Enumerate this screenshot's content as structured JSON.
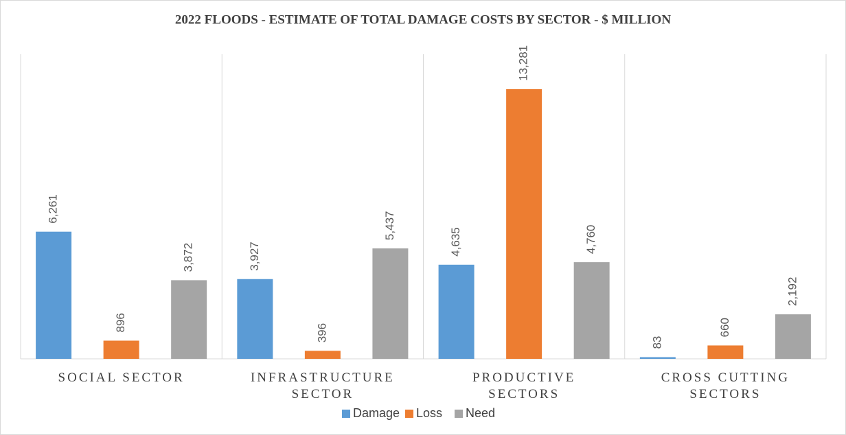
{
  "chart_data": {
    "type": "bar",
    "title": "2022 FLOODS - ESTIMATE OF TOTAL DAMAGE COSTS BY SECTOR - $ MILLION",
    "categories": [
      "SOCIAL SECTOR",
      "INFRASTRUCTURE SECTOR",
      "PRODUCTIVE SECTORS",
      "CROSS CUTTING SECTORS"
    ],
    "series": [
      {
        "name": "Damage",
        "color": "#5b9bd5",
        "values": [
          6261,
          3927,
          4635,
          83
        ],
        "value_labels": [
          "6,261",
          "3,927",
          "4,635",
          "83"
        ]
      },
      {
        "name": "Loss",
        "color": "#ed7d31",
        "values": [
          896,
          396,
          13281,
          660
        ],
        "value_labels": [
          "896",
          "396",
          "13,281",
          "660"
        ]
      },
      {
        "name": "Need",
        "color": "#a5a5a5",
        "values": [
          3872,
          5437,
          4760,
          2192
        ],
        "value_labels": [
          "3,872",
          "5,437",
          "4,760",
          "2,192"
        ]
      }
    ],
    "ylim": [
      0,
      15000
    ],
    "legend": "bottom"
  }
}
